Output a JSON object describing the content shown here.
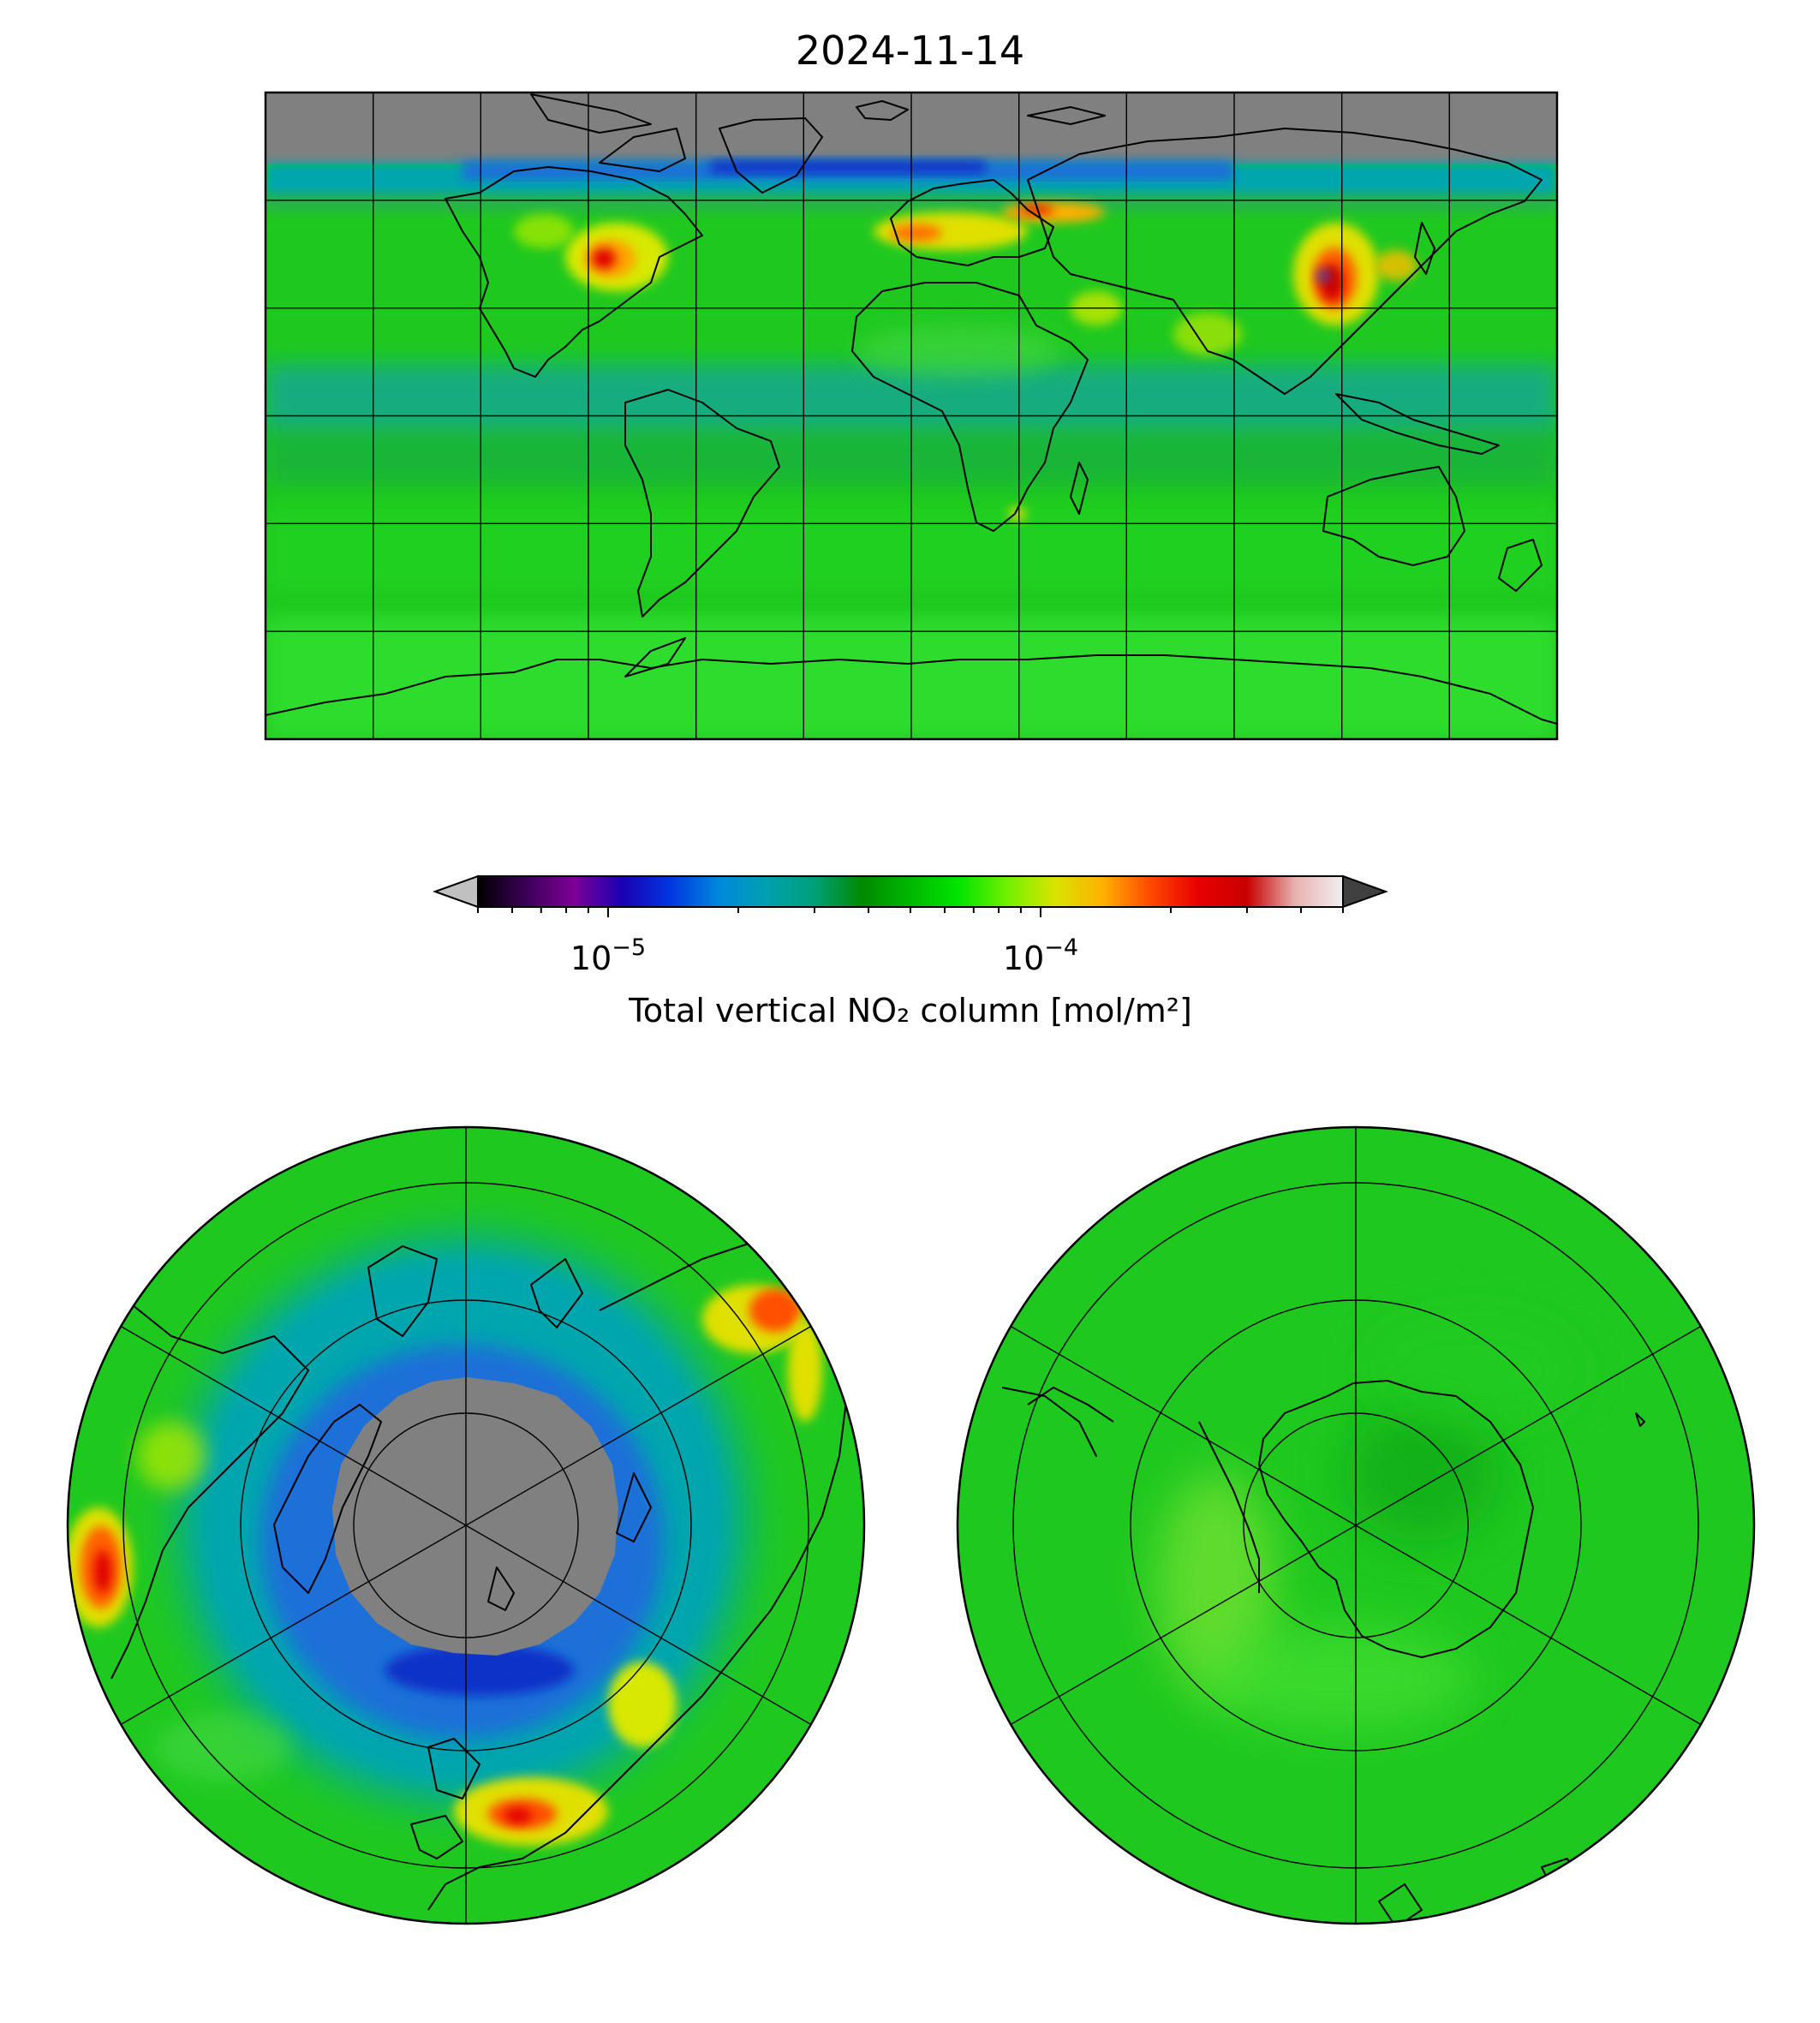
{
  "figure": {
    "title": "2024-11-14"
  },
  "colorbar": {
    "label": "Total vertical NO₂ column [mol/m²]",
    "scale": "log",
    "range": [
      5e-06,
      0.0005
    ],
    "ticks": [
      {
        "value": 1e-05,
        "base": "10",
        "exp": "−5"
      },
      {
        "value": 0.0001,
        "base": "10",
        "exp": "−4"
      }
    ],
    "extend": "both",
    "under_color": "#c0c0c0",
    "over_color": "#404040",
    "colormap": [
      "#000000",
      "#3b0058",
      "#7e0096",
      "#1a00b4",
      "#0036e0",
      "#0088dc",
      "#00a0b0",
      "#00a078",
      "#008a00",
      "#00b800",
      "#00e400",
      "#70f000",
      "#d8e400",
      "#ffb000",
      "#ff4800",
      "#e80000",
      "#c80000",
      "#e8b0b0",
      "#f0f0f0"
    ]
  },
  "maps": {
    "global": {
      "projection": "plate-carree",
      "missing_color": "#808080"
    },
    "north_polar": {
      "projection": "north-polar-stereographic",
      "missing_color": "#808080"
    },
    "south_polar": {
      "projection": "south-polar-stereographic"
    }
  },
  "colors": {
    "background_green": "#1fcc1f",
    "no_data": "#808080",
    "low_teal": "#00a0b0",
    "low_blue": "#1e70d8",
    "high_yellow": "#e8e800",
    "high_red": "#e00000",
    "coastline": "#000000",
    "gridline": "#000000"
  }
}
